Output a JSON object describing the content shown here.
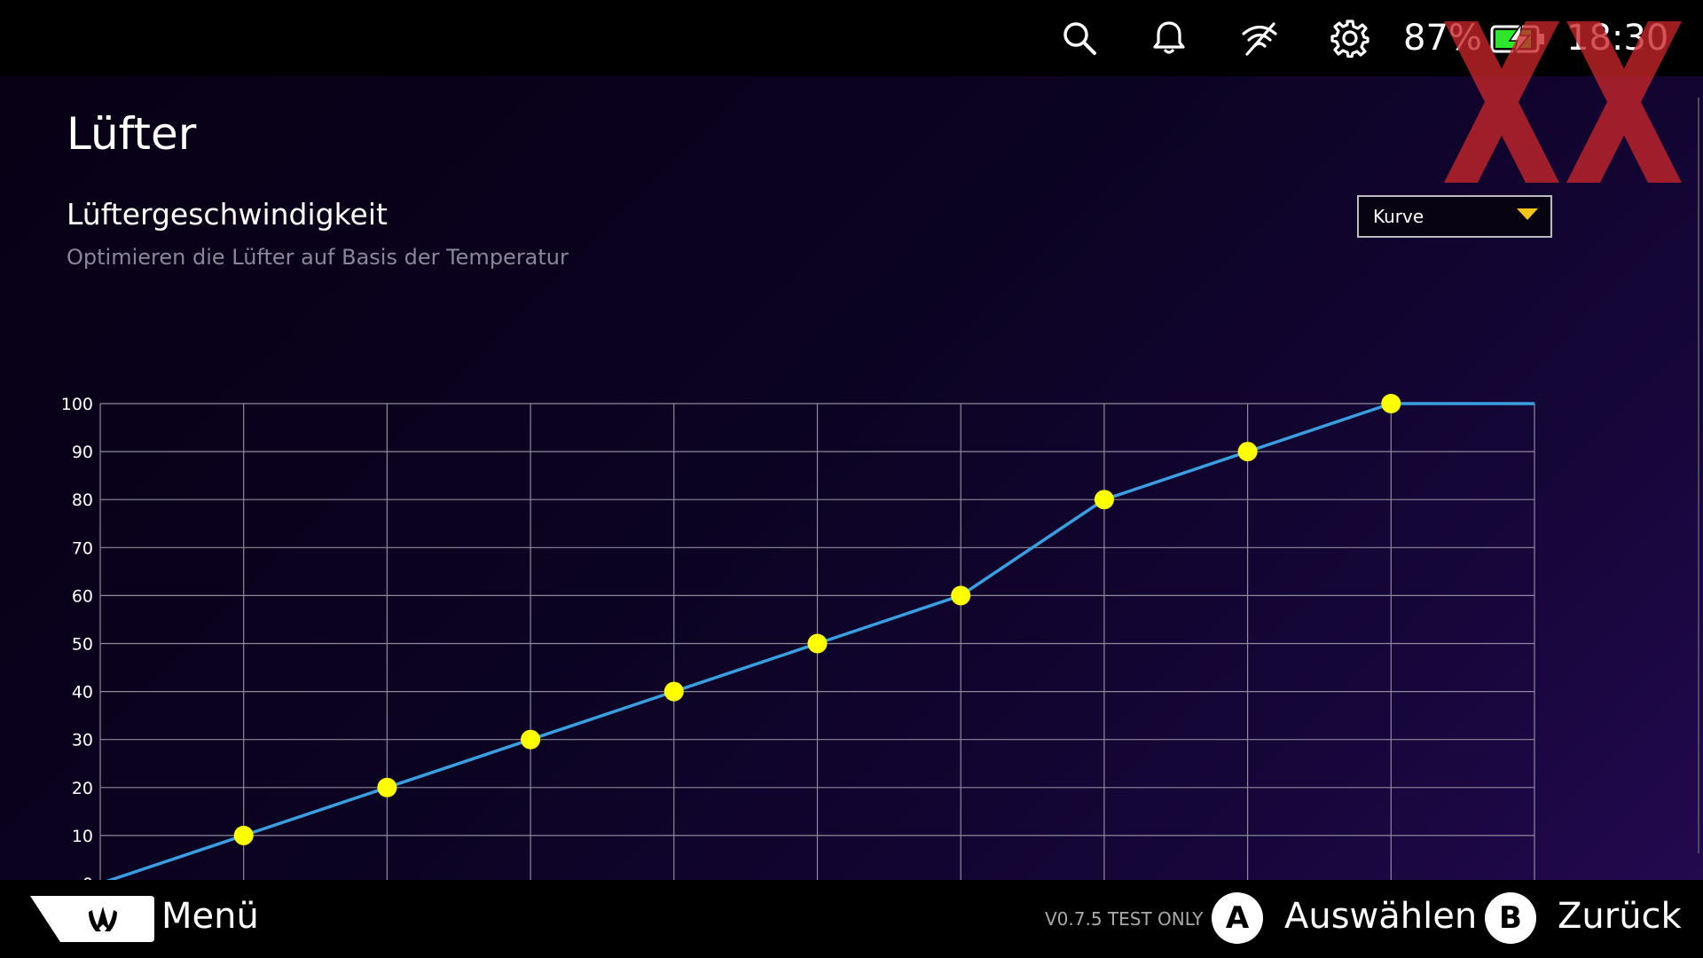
{
  "status_bar": {
    "icons": [
      "search-icon",
      "bell-icon",
      "wifi-off-icon",
      "gear-icon"
    ],
    "battery_percent": "87%",
    "battery_icon": "battery-charging-icon",
    "time": "18:30"
  },
  "page": {
    "title": "Lüfter",
    "section_title": "Lüftergeschwindigkeit",
    "section_subtitle": "Optimieren die Lüfter auf Basis der Temperatur"
  },
  "mode_select": {
    "value": "Kurve",
    "arrow_color": "#f5c518"
  },
  "chart_data": {
    "type": "line",
    "x": [
      0,
      10,
      20,
      30,
      40,
      50,
      60,
      70,
      80,
      90,
      100
    ],
    "y": [
      0,
      10,
      20,
      30,
      40,
      50,
      60,
      80,
      90,
      100,
      100
    ],
    "control_points_x": [
      10,
      20,
      30,
      40,
      50,
      60,
      70,
      80,
      90
    ],
    "control_points_y": [
      10,
      20,
      30,
      40,
      50,
      60,
      80,
      90,
      100
    ],
    "xlim": [
      0,
      100
    ],
    "ylim": [
      0,
      100
    ],
    "x_ticks": [
      "0",
      "10",
      "20",
      "30",
      "40",
      "50",
      "60",
      "70",
      "80",
      "90",
      "100"
    ],
    "y_ticks": [
      "0",
      "10",
      "20",
      "30",
      "40",
      "50",
      "60",
      "70",
      "80",
      "90",
      "100"
    ],
    "grid": true,
    "line_color": "#3a9fe0",
    "point_color": "#ffff00",
    "grid_color": "#8e8a9c"
  },
  "bottom_bar": {
    "menu_label": "Menü",
    "version": "V0.7.5 TEST ONLY",
    "button_a_glyph": "A",
    "button_a_label": "Auswählen",
    "button_b_glyph": "B",
    "button_b_label": "Zurück"
  },
  "colors": {
    "background_top": "#080014",
    "background_bottom": "#23094f",
    "logo_red": "#c8262a"
  }
}
